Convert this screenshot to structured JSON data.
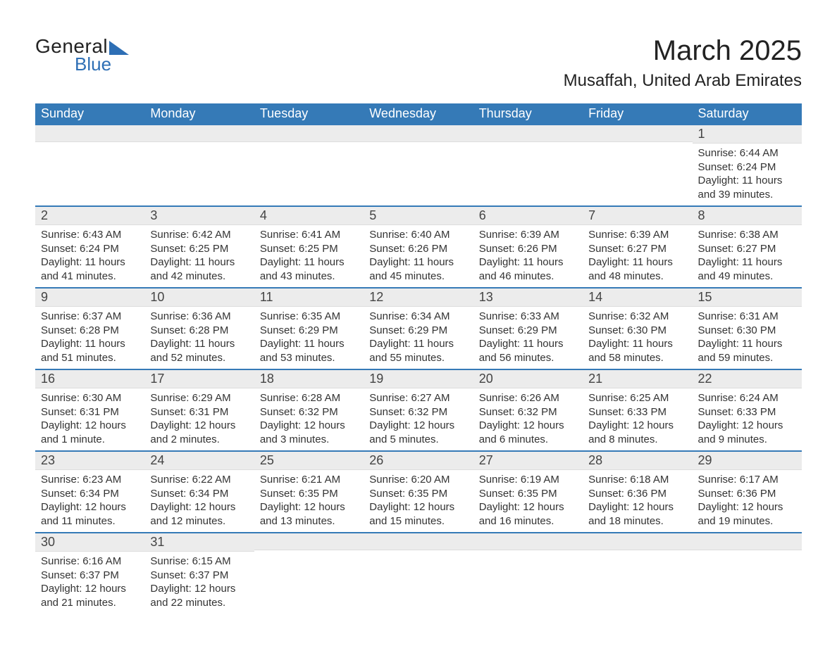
{
  "logo": {
    "text1": "General",
    "text2": "Blue"
  },
  "title": "March 2025",
  "location": "Musaffah, United Arab Emirates",
  "colors": {
    "header_bg": "#357ab7",
    "header_fg": "#ffffff",
    "daynum_bg": "#ececec",
    "row_border": "#357ab7",
    "text": "#333333",
    "logo_accent": "#2e6fb5"
  },
  "fonts": {
    "title_size_pt": 40,
    "location_size_pt": 24,
    "header_size_pt": 18,
    "daynum_size_pt": 18,
    "body_size_pt": 15
  },
  "day_headers": [
    "Sunday",
    "Monday",
    "Tuesday",
    "Wednesday",
    "Thursday",
    "Friday",
    "Saturday"
  ],
  "weeks": [
    [
      null,
      null,
      null,
      null,
      null,
      null,
      {
        "n": "1",
        "sunrise": "Sunrise: 6:44 AM",
        "sunset": "Sunset: 6:24 PM",
        "daylight": "Daylight: 11 hours and 39 minutes."
      }
    ],
    [
      {
        "n": "2",
        "sunrise": "Sunrise: 6:43 AM",
        "sunset": "Sunset: 6:24 PM",
        "daylight": "Daylight: 11 hours and 41 minutes."
      },
      {
        "n": "3",
        "sunrise": "Sunrise: 6:42 AM",
        "sunset": "Sunset: 6:25 PM",
        "daylight": "Daylight: 11 hours and 42 minutes."
      },
      {
        "n": "4",
        "sunrise": "Sunrise: 6:41 AM",
        "sunset": "Sunset: 6:25 PM",
        "daylight": "Daylight: 11 hours and 43 minutes."
      },
      {
        "n": "5",
        "sunrise": "Sunrise: 6:40 AM",
        "sunset": "Sunset: 6:26 PM",
        "daylight": "Daylight: 11 hours and 45 minutes."
      },
      {
        "n": "6",
        "sunrise": "Sunrise: 6:39 AM",
        "sunset": "Sunset: 6:26 PM",
        "daylight": "Daylight: 11 hours and 46 minutes."
      },
      {
        "n": "7",
        "sunrise": "Sunrise: 6:39 AM",
        "sunset": "Sunset: 6:27 PM",
        "daylight": "Daylight: 11 hours and 48 minutes."
      },
      {
        "n": "8",
        "sunrise": "Sunrise: 6:38 AM",
        "sunset": "Sunset: 6:27 PM",
        "daylight": "Daylight: 11 hours and 49 minutes."
      }
    ],
    [
      {
        "n": "9",
        "sunrise": "Sunrise: 6:37 AM",
        "sunset": "Sunset: 6:28 PM",
        "daylight": "Daylight: 11 hours and 51 minutes."
      },
      {
        "n": "10",
        "sunrise": "Sunrise: 6:36 AM",
        "sunset": "Sunset: 6:28 PM",
        "daylight": "Daylight: 11 hours and 52 minutes."
      },
      {
        "n": "11",
        "sunrise": "Sunrise: 6:35 AM",
        "sunset": "Sunset: 6:29 PM",
        "daylight": "Daylight: 11 hours and 53 minutes."
      },
      {
        "n": "12",
        "sunrise": "Sunrise: 6:34 AM",
        "sunset": "Sunset: 6:29 PM",
        "daylight": "Daylight: 11 hours and 55 minutes."
      },
      {
        "n": "13",
        "sunrise": "Sunrise: 6:33 AM",
        "sunset": "Sunset: 6:29 PM",
        "daylight": "Daylight: 11 hours and 56 minutes."
      },
      {
        "n": "14",
        "sunrise": "Sunrise: 6:32 AM",
        "sunset": "Sunset: 6:30 PM",
        "daylight": "Daylight: 11 hours and 58 minutes."
      },
      {
        "n": "15",
        "sunrise": "Sunrise: 6:31 AM",
        "sunset": "Sunset: 6:30 PM",
        "daylight": "Daylight: 11 hours and 59 minutes."
      }
    ],
    [
      {
        "n": "16",
        "sunrise": "Sunrise: 6:30 AM",
        "sunset": "Sunset: 6:31 PM",
        "daylight": "Daylight: 12 hours and 1 minute."
      },
      {
        "n": "17",
        "sunrise": "Sunrise: 6:29 AM",
        "sunset": "Sunset: 6:31 PM",
        "daylight": "Daylight: 12 hours and 2 minutes."
      },
      {
        "n": "18",
        "sunrise": "Sunrise: 6:28 AM",
        "sunset": "Sunset: 6:32 PM",
        "daylight": "Daylight: 12 hours and 3 minutes."
      },
      {
        "n": "19",
        "sunrise": "Sunrise: 6:27 AM",
        "sunset": "Sunset: 6:32 PM",
        "daylight": "Daylight: 12 hours and 5 minutes."
      },
      {
        "n": "20",
        "sunrise": "Sunrise: 6:26 AM",
        "sunset": "Sunset: 6:32 PM",
        "daylight": "Daylight: 12 hours and 6 minutes."
      },
      {
        "n": "21",
        "sunrise": "Sunrise: 6:25 AM",
        "sunset": "Sunset: 6:33 PM",
        "daylight": "Daylight: 12 hours and 8 minutes."
      },
      {
        "n": "22",
        "sunrise": "Sunrise: 6:24 AM",
        "sunset": "Sunset: 6:33 PM",
        "daylight": "Daylight: 12 hours and 9 minutes."
      }
    ],
    [
      {
        "n": "23",
        "sunrise": "Sunrise: 6:23 AM",
        "sunset": "Sunset: 6:34 PM",
        "daylight": "Daylight: 12 hours and 11 minutes."
      },
      {
        "n": "24",
        "sunrise": "Sunrise: 6:22 AM",
        "sunset": "Sunset: 6:34 PM",
        "daylight": "Daylight: 12 hours and 12 minutes."
      },
      {
        "n": "25",
        "sunrise": "Sunrise: 6:21 AM",
        "sunset": "Sunset: 6:35 PM",
        "daylight": "Daylight: 12 hours and 13 minutes."
      },
      {
        "n": "26",
        "sunrise": "Sunrise: 6:20 AM",
        "sunset": "Sunset: 6:35 PM",
        "daylight": "Daylight: 12 hours and 15 minutes."
      },
      {
        "n": "27",
        "sunrise": "Sunrise: 6:19 AM",
        "sunset": "Sunset: 6:35 PM",
        "daylight": "Daylight: 12 hours and 16 minutes."
      },
      {
        "n": "28",
        "sunrise": "Sunrise: 6:18 AM",
        "sunset": "Sunset: 6:36 PM",
        "daylight": "Daylight: 12 hours and 18 minutes."
      },
      {
        "n": "29",
        "sunrise": "Sunrise: 6:17 AM",
        "sunset": "Sunset: 6:36 PM",
        "daylight": "Daylight: 12 hours and 19 minutes."
      }
    ],
    [
      {
        "n": "30",
        "sunrise": "Sunrise: 6:16 AM",
        "sunset": "Sunset: 6:37 PM",
        "daylight": "Daylight: 12 hours and 21 minutes."
      },
      {
        "n": "31",
        "sunrise": "Sunrise: 6:15 AM",
        "sunset": "Sunset: 6:37 PM",
        "daylight": "Daylight: 12 hours and 22 minutes."
      },
      null,
      null,
      null,
      null,
      null
    ]
  ]
}
